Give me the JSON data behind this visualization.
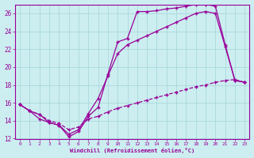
{
  "background_color": "#cceef0",
  "grid_color": "#aad8dc",
  "line_color": "#990099",
  "xlim": [
    -0.5,
    23.5
  ],
  "ylim": [
    12,
    27
  ],
  "xlabel": "Windchill (Refroidissement éolien,°C)",
  "yticks": [
    12,
    14,
    16,
    18,
    20,
    22,
    24,
    26
  ],
  "xticks": [
    0,
    1,
    2,
    3,
    4,
    5,
    6,
    7,
    8,
    9,
    10,
    11,
    12,
    13,
    14,
    15,
    16,
    17,
    18,
    19,
    20,
    21,
    22,
    23
  ],
  "line1_x": [
    0,
    1,
    2,
    3,
    4,
    5,
    6,
    7,
    8,
    9,
    10,
    11,
    12,
    13,
    14,
    15,
    16,
    17,
    18,
    19,
    20,
    21,
    22,
    23
  ],
  "line1_y": [
    15.8,
    15.1,
    14.7,
    13.8,
    13.5,
    12.2,
    12.8,
    14.5,
    15.5,
    19.2,
    22.8,
    23.2,
    26.2,
    26.2,
    26.3,
    26.5,
    26.6,
    26.8,
    27.0,
    27.0,
    26.8,
    22.5,
    18.5,
    18.3
  ],
  "line2_x": [
    0,
    1,
    2,
    3,
    4,
    5,
    6,
    7,
    8,
    9,
    10,
    11,
    12,
    13,
    14,
    15,
    16,
    17,
    18,
    19,
    20,
    21,
    22,
    23
  ],
  "line2_y": [
    15.8,
    15.1,
    14.2,
    13.8,
    13.5,
    12.5,
    13.0,
    14.8,
    16.5,
    19.0,
    21.5,
    22.5,
    23.0,
    23.5,
    24.0,
    24.5,
    25.0,
    25.5,
    26.0,
    26.2,
    26.0,
    22.3,
    18.5,
    18.3
  ],
  "line3_x": [
    0,
    1,
    2,
    3,
    4,
    5,
    6,
    7,
    8,
    9,
    10,
    11,
    12,
    13,
    14,
    15,
    16,
    17,
    18,
    19,
    20,
    21,
    22,
    23
  ],
  "line3_y": [
    15.8,
    15.1,
    14.7,
    14.0,
    13.7,
    13.0,
    13.3,
    14.2,
    14.5,
    15.0,
    15.4,
    15.7,
    16.0,
    16.3,
    16.6,
    16.9,
    17.2,
    17.5,
    17.8,
    18.0,
    18.3,
    18.5,
    18.6,
    18.3
  ]
}
